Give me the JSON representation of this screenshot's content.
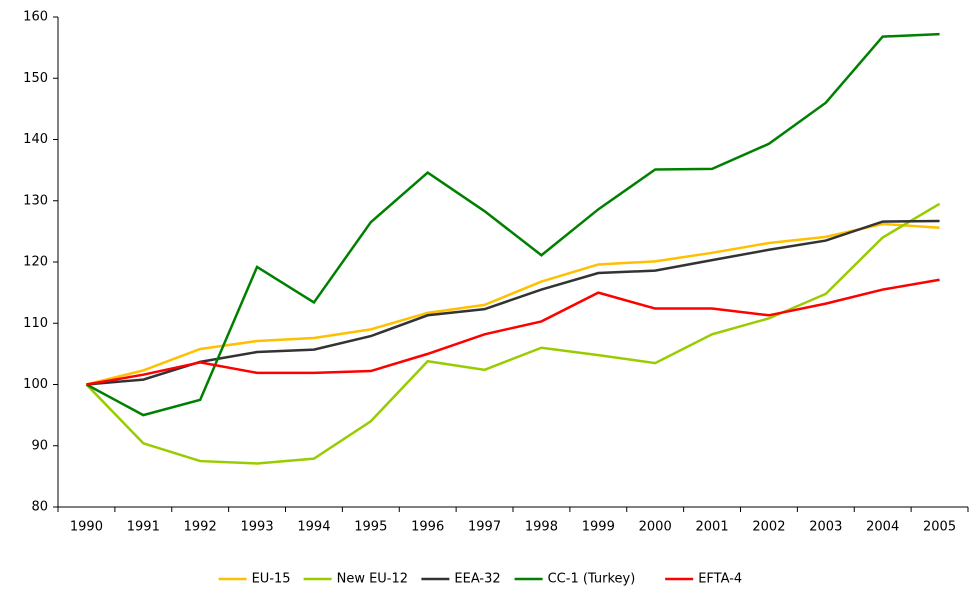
{
  "chart_data": {
    "type": "line",
    "categories": [
      "1990",
      "1991",
      "1992",
      "1993",
      "1994",
      "1995",
      "1996",
      "1997",
      "1998",
      "1999",
      "2000",
      "2001",
      "2002",
      "2003",
      "2004",
      "2005"
    ],
    "series": [
      {
        "name": "EU-15",
        "color": "#ffc000",
        "values": [
          100,
          102.3,
          105.8,
          107.1,
          107.6,
          109.0,
          111.7,
          113.0,
          116.8,
          119.6,
          120.1,
          121.5,
          123.1,
          124.1,
          126.2,
          125.6
        ]
      },
      {
        "name": "New EU-12",
        "color": "#99cc00",
        "values": [
          100,
          90.4,
          87.5,
          87.1,
          87.9,
          94.0,
          103.8,
          102.4,
          106.0,
          104.8,
          103.5,
          108.2,
          110.8,
          114.8,
          124.0,
          129.5
        ]
      },
      {
        "name": "EEA-32",
        "color": "#333333",
        "values": [
          100,
          100.8,
          103.7,
          105.3,
          105.7,
          107.9,
          111.3,
          112.3,
          115.5,
          118.2,
          118.6,
          120.3,
          122.0,
          123.5,
          126.6,
          126.7
        ]
      },
      {
        "name": "CC-1 (Turkey)",
        "color": "#008000",
        "values": [
          100,
          95.0,
          97.5,
          119.2,
          113.4,
          126.5,
          134.6,
          128.3,
          121.1,
          128.6,
          135.1,
          135.2,
          139.3,
          146.0,
          156.8,
          157.2
        ]
      },
      {
        "name": "EFTA-4",
        "color": "#ff0000",
        "values": [
          100,
          101.6,
          103.6,
          101.9,
          101.9,
          102.2,
          105.0,
          108.2,
          110.3,
          115.0,
          112.4,
          112.4,
          111.3,
          113.2,
          115.5,
          117.1
        ]
      }
    ],
    "ylim": [
      80,
      160
    ],
    "yticks": [
      80,
      90,
      100,
      110,
      120,
      130,
      140,
      150,
      160
    ],
    "grid": false,
    "legend": "bottom"
  }
}
